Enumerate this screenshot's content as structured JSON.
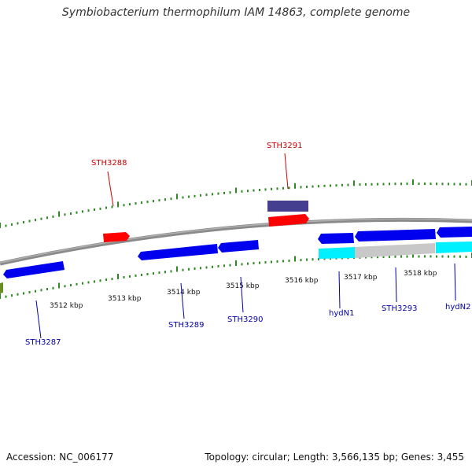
{
  "title": "Symbiobacterium thermophilum IAM 14863, complete genome",
  "footer": {
    "accession": "Accession: NC_006177",
    "summary": "Topology: circular; Length: 3,566,135 bp; Genes: 3,455"
  },
  "colors": {
    "forward_gene": "#ff0000",
    "reverse_gene": "#0000ee",
    "rna_gene": "#443f8f",
    "cyan_feature": "#00f0ff",
    "gray_feature": "#c8c8c8",
    "olive_feature": "#6b8e23",
    "backbone": "#808080",
    "ticks": "#2e8b22",
    "label_forward": "#cc0000",
    "label_reverse": "#0000aa"
  },
  "scale": {
    "unit": "kbp",
    "ticks": [
      "3512 kbp",
      "3513 kbp",
      "3514 kbp",
      "3515 kbp",
      "3516 kbp",
      "3517 kbp",
      "3518 kbp"
    ]
  },
  "genes": [
    {
      "label": "STH3288",
      "strand": "forward"
    },
    {
      "label": "STH3291",
      "strand": "forward"
    },
    {
      "label": "STH3287",
      "strand": "reverse"
    },
    {
      "label": "STH3289",
      "strand": "reverse"
    },
    {
      "label": "STH3290",
      "strand": "reverse"
    },
    {
      "label": "hydN1",
      "strand": "reverse"
    },
    {
      "label": "STH3293",
      "strand": "reverse"
    },
    {
      "label": "hydN2",
      "strand": "reverse"
    }
  ]
}
